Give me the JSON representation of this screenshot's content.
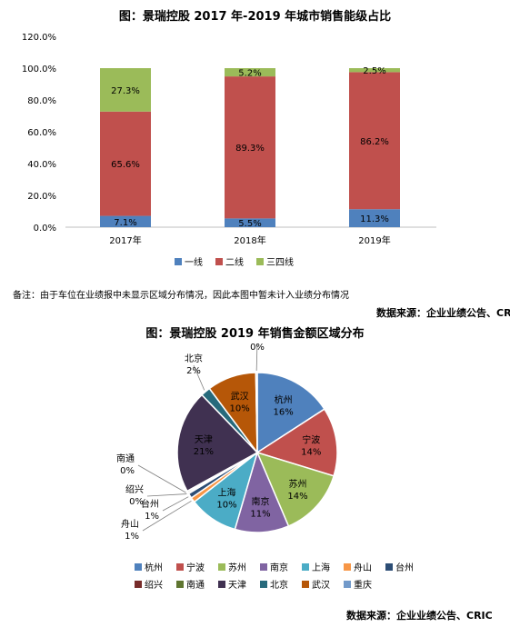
{
  "chart1": {
    "title": "图：景瑞控股 2017 年-2019 年城市销售能级占比",
    "note": "备注：由于车位在业绩报中未显示区域分布情况，因此本图中暂未计入业绩分布情况",
    "source": "数据来源：企业业绩公告、CRIC"
  },
  "chart2": {
    "title": "图：景瑞控股 2019 年销售金额区域分布",
    "source": "数据来源：企业业绩公告、CRIC"
  },
  "chart_data": [
    {
      "type": "bar",
      "stacked": true,
      "title": "图：景瑞控股 2017 年-2019 年城市销售能级占比",
      "categories": [
        "2017年",
        "2018年",
        "2019年"
      ],
      "series": [
        {
          "name": "一线",
          "color": "#4f81bd",
          "values": [
            7.1,
            5.5,
            11.3
          ],
          "labels": [
            "7.1%",
            "5.5%",
            "11.3%"
          ]
        },
        {
          "name": "二线",
          "color": "#c0504d",
          "values": [
            65.6,
            89.3,
            86.2
          ],
          "labels": [
            "65.6%",
            "89.3%",
            "86.2%"
          ]
        },
        {
          "name": "三四线",
          "color": "#9bbb59",
          "values": [
            27.3,
            5.2,
            2.5
          ],
          "labels": [
            "27.3%",
            "5.2%",
            "2.5%"
          ]
        }
      ],
      "ylim": [
        0,
        120
      ],
      "yticks": [
        "0.0%",
        "20.0%",
        "40.0%",
        "60.0%",
        "80.0%",
        "100.0%",
        "120.0%"
      ],
      "legend": "bottom",
      "grid": false
    },
    {
      "type": "pie",
      "title": "图：景瑞控股 2019 年销售金额区域分布",
      "slices": [
        {
          "name": "杭州",
          "value": 16,
          "label": "16%",
          "color": "#4f81bd"
        },
        {
          "name": "宁波",
          "value": 14,
          "label": "14%",
          "color": "#c0504d"
        },
        {
          "name": "苏州",
          "value": 14,
          "label": "14%",
          "color": "#9bbb59"
        },
        {
          "name": "南京",
          "value": 11,
          "label": "11%",
          "color": "#8064a2"
        },
        {
          "name": "上海",
          "value": 10,
          "label": "10%",
          "color": "#4bacc6"
        },
        {
          "name": "舟山",
          "value": 1,
          "label": "1%",
          "color": "#f79646"
        },
        {
          "name": "台州",
          "value": 1,
          "label": "1%",
          "color": "#2c4d75"
        },
        {
          "name": "绍兴",
          "value": 0.3,
          "label": "0%",
          "color": "#772c2a"
        },
        {
          "name": "南通",
          "value": 0.3,
          "label": "0%",
          "color": "#5f7530"
        },
        {
          "name": "天津",
          "value": 21,
          "label": "21%",
          "color": "#403151"
        },
        {
          "name": "北京",
          "value": 2,
          "label": "2%",
          "color": "#276a7c"
        },
        {
          "name": "武汉",
          "value": 10,
          "label": "10%",
          "color": "#b65708"
        },
        {
          "name": "重庆",
          "value": 0.3,
          "label": "0%",
          "color": "#729aca"
        }
      ],
      "legend": "bottom"
    }
  ]
}
